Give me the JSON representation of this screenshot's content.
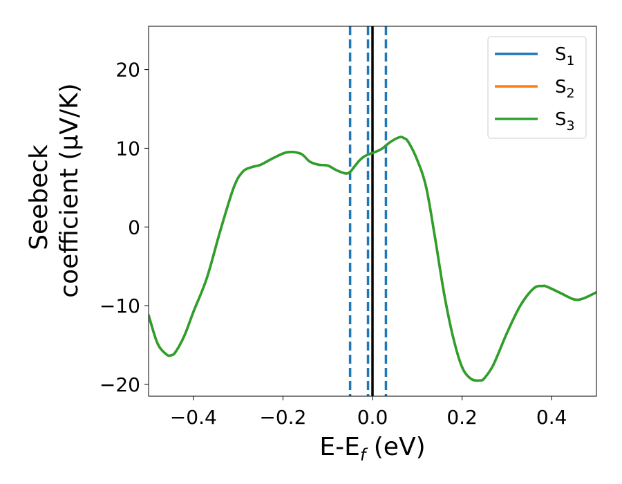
{
  "chart_data": {
    "type": "line",
    "title": "",
    "xlabel": {
      "main": "E-E",
      "sub": "f",
      "suffix": " (eV)"
    },
    "ylabel": {
      "line1": "Seebeck",
      "line2": "coefficient  (μV/K)"
    },
    "xlim": [
      -0.5,
      0.5
    ],
    "ylim": [
      -21.5,
      25.5
    ],
    "xticks": [
      -0.4,
      -0.2,
      0.0,
      0.2,
      0.4
    ],
    "xtick_labels": [
      "−0.4",
      "−0.2",
      "0.0",
      "0.2",
      "0.4"
    ],
    "yticks": [
      -20,
      -10,
      0,
      10,
      20
    ],
    "ytick_labels": [
      "−20",
      "−10",
      "0",
      "10",
      "20"
    ],
    "grid": false,
    "legend_position": "top-right",
    "legend": [
      {
        "base": "S",
        "sub": "1",
        "color": "#1f77b4"
      },
      {
        "base": "S",
        "sub": "2",
        "color": "#ff7f0e"
      },
      {
        "base": "S",
        "sub": "3",
        "color": "#2ca02c"
      }
    ],
    "x": [
      -0.5,
      -0.48,
      -0.46,
      -0.45,
      -0.44,
      -0.42,
      -0.4,
      -0.37,
      -0.34,
      -0.31,
      -0.29,
      -0.27,
      -0.25,
      -0.22,
      -0.19,
      -0.16,
      -0.14,
      -0.12,
      -0.1,
      -0.08,
      -0.06,
      -0.05,
      -0.04,
      -0.03,
      -0.02,
      -0.01,
      0.0,
      0.02,
      0.04,
      0.06,
      0.07,
      0.08,
      0.1,
      0.12,
      0.14,
      0.16,
      0.18,
      0.2,
      0.22,
      0.24,
      0.25,
      0.27,
      0.3,
      0.33,
      0.36,
      0.38,
      0.39,
      0.42,
      0.45,
      0.47,
      0.5
    ],
    "series": [
      {
        "name": "S1",
        "color": "#1f77b4",
        "values": [
          -11.2,
          -14.8,
          -16.2,
          -16.3,
          -15.9,
          -13.8,
          -10.8,
          -6.5,
          -0.5,
          5.0,
          7.0,
          7.6,
          7.9,
          8.8,
          9.5,
          9.3,
          8.3,
          7.9,
          7.8,
          7.2,
          6.8,
          7.0,
          7.7,
          8.4,
          8.9,
          9.2,
          9.4,
          9.9,
          10.8,
          11.4,
          11.3,
          10.8,
          8.5,
          5.0,
          -1.5,
          -8.5,
          -14.0,
          -17.8,
          -19.3,
          -19.5,
          -19.2,
          -17.5,
          -13.5,
          -10.0,
          -7.8,
          -7.5,
          -7.6,
          -8.4,
          -9.2,
          -9.1,
          -8.3
        ]
      },
      {
        "name": "S2",
        "color": "#ff7f0e",
        "values": [
          -11.2,
          -14.8,
          -16.2,
          -16.3,
          -15.9,
          -13.8,
          -10.8,
          -6.5,
          -0.5,
          5.0,
          7.0,
          7.6,
          7.9,
          8.8,
          9.5,
          9.3,
          8.3,
          7.9,
          7.8,
          7.2,
          6.8,
          7.0,
          7.7,
          8.4,
          8.9,
          9.2,
          9.4,
          9.9,
          10.8,
          11.4,
          11.3,
          10.8,
          8.5,
          5.0,
          -1.5,
          -8.5,
          -14.0,
          -17.8,
          -19.3,
          -19.5,
          -19.2,
          -17.5,
          -13.5,
          -10.0,
          -7.8,
          -7.5,
          -7.6,
          -8.4,
          -9.2,
          -9.1,
          -8.3
        ]
      },
      {
        "name": "S3",
        "color": "#2ca02c",
        "values": [
          -11.2,
          -14.8,
          -16.2,
          -16.3,
          -15.9,
          -13.8,
          -10.8,
          -6.5,
          -0.5,
          5.0,
          7.0,
          7.6,
          7.9,
          8.8,
          9.5,
          9.3,
          8.3,
          7.9,
          7.8,
          7.2,
          6.8,
          7.0,
          7.7,
          8.4,
          8.9,
          9.2,
          9.4,
          9.9,
          10.8,
          11.4,
          11.3,
          10.8,
          8.5,
          5.0,
          -1.5,
          -8.5,
          -14.0,
          -17.8,
          -19.3,
          -19.5,
          -19.2,
          -17.5,
          -13.5,
          -10.0,
          -7.8,
          -7.5,
          -7.6,
          -8.4,
          -9.2,
          -9.1,
          -8.3
        ]
      }
    ],
    "vlines": [
      {
        "x": -0.05,
        "style": "dashed",
        "color": "#1f77b4"
      },
      {
        "x": -0.01,
        "style": "dashed",
        "color": "#1f77b4"
      },
      {
        "x": 0.0,
        "style": "solid",
        "color": "#000000"
      },
      {
        "x": 0.03,
        "style": "dashed",
        "color": "#1f77b4"
      }
    ]
  }
}
